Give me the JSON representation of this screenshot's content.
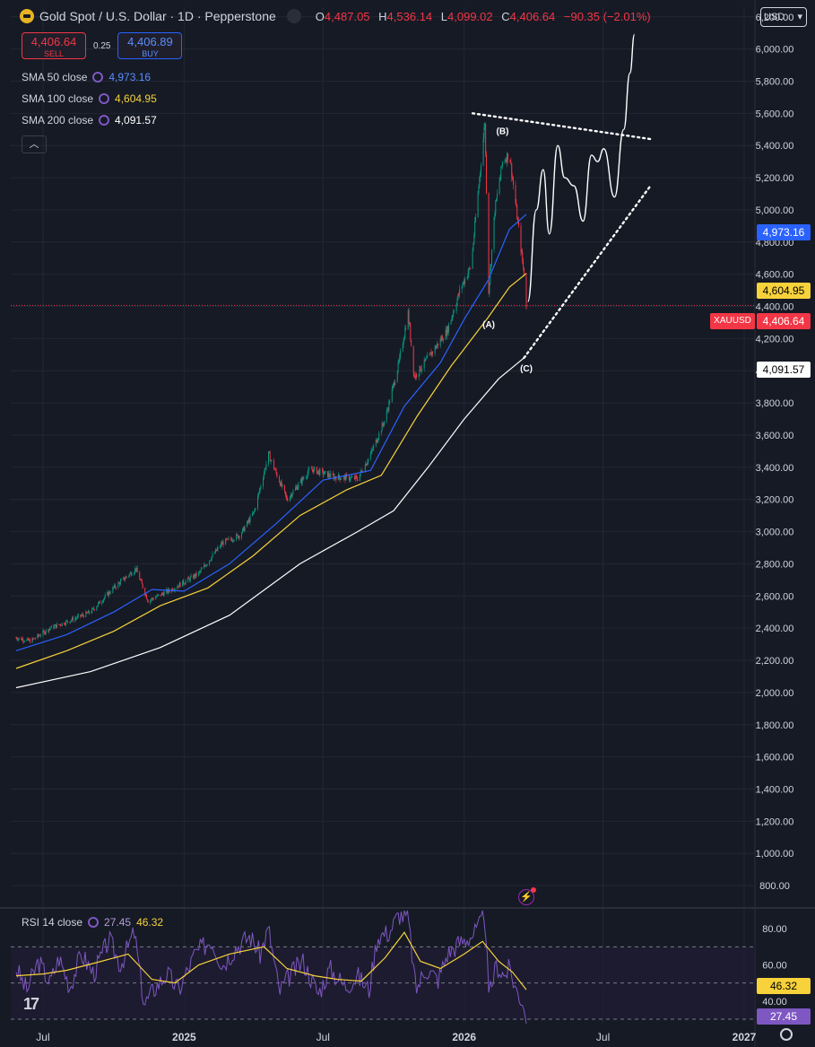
{
  "header": {
    "symbol_title": "Gold Spot / U.S. Dollar · 1D · Pepperstone",
    "ohlc": [
      {
        "k": "O",
        "v": "4,487.05"
      },
      {
        "k": "H",
        "v": "4,536.14"
      },
      {
        "k": "L",
        "v": "4,099.02"
      },
      {
        "k": "C",
        "v": "4,406.64"
      }
    ],
    "change": "−90.35 (−2.01%)",
    "icon": "broadcast-icon"
  },
  "trade": {
    "sell_price": "4,406.64",
    "sell_label": "SELL",
    "spread": "0.25",
    "buy_price": "4,406.89",
    "buy_label": "BUY"
  },
  "indicators": {
    "sma50": {
      "label": "SMA 50 close",
      "value": "4,973.16",
      "color": "#2962ff"
    },
    "sma100": {
      "label": "SMA 100 close",
      "value": "4,604.95",
      "color": "#f7d23a"
    },
    "sma200": {
      "label": "SMA 200 close",
      "value": "4,091.57",
      "color": "#ffffff"
    },
    "collapse_icon": "chevron-up-icon"
  },
  "currency": "USD",
  "price_badges": {
    "sma50": "4,973.16",
    "sma100": "4,604.95",
    "symbol": "XAUUSD",
    "last": "4,406.64",
    "sma200": "4,091.57"
  },
  "rsi": {
    "label": "RSI 14 close",
    "rsi_value": "27.45",
    "ma_value": "46.32",
    "badge_ma": "46.32",
    "badge_rsi": "27.45"
  },
  "colors": {
    "background": "#161a25",
    "up": "#089981",
    "down": "#f23645",
    "sma50": "#2962ff",
    "sma100": "#f7d23a",
    "sma200": "#ffffff",
    "rsi": "#7e57c2"
  },
  "chart_data": [
    {
      "type": "candlestick",
      "title": "Gold Spot / U.S. Dollar · 1D · Pepperstone",
      "y_ticks": [
        "800.00",
        "1,000.00",
        "1,200.00",
        "1,400.00",
        "1,600.00",
        "1,800.00",
        "2,000.00",
        "2,200.00",
        "2,400.00",
        "2,600.00",
        "2,800.00",
        "3,000.00",
        "3,200.00",
        "3,400.00",
        "3,600.00",
        "3,800.00",
        "4,000.00",
        "4,200.00",
        "4,400.00",
        "4,600.00",
        "4,800.00",
        "5,000.00",
        "5,200.00",
        "5,400.00",
        "5,600.00",
        "5,800.00",
        "6,000.00",
        "6,200.00"
      ],
      "x_ticks": [
        "Jul",
        "2025",
        "Jul",
        "2026",
        "Jul",
        "2027"
      ],
      "ylim": [
        700,
        6260
      ],
      "price_path": [
        [
          "2024-05-27",
          2340
        ],
        [
          "2024-06-15",
          2320
        ],
        [
          "2024-07-10",
          2400
        ],
        [
          "2024-08-01",
          2440
        ],
        [
          "2024-09-01",
          2500
        ],
        [
          "2024-10-01",
          2650
        ],
        [
          "2024-10-30",
          2770
        ],
        [
          "2024-11-15",
          2570
        ],
        [
          "2024-12-15",
          2640
        ],
        [
          "2025-01-20",
          2740
        ],
        [
          "2025-02-20",
          2930
        ],
        [
          "2025-03-15",
          2980
        ],
        [
          "2025-04-02",
          3120
        ],
        [
          "2025-04-21",
          3480
        ],
        [
          "2025-05-15",
          3200
        ],
        [
          "2025-06-15",
          3390
        ],
        [
          "2025-07-15",
          3340
        ],
        [
          "2025-08-15",
          3330
        ],
        [
          "2025-09-01",
          3480
        ],
        [
          "2025-09-20",
          3700
        ],
        [
          "2025-10-08",
          4050
        ],
        [
          "2025-10-20",
          4360
        ],
        [
          "2025-10-28",
          3960
        ],
        [
          "2025-11-15",
          4080
        ],
        [
          "2025-12-10",
          4250
        ],
        [
          "2025-12-28",
          4520
        ],
        [
          "2026-01-10",
          4650
        ],
        [
          "2026-01-28",
          5550
        ],
        [
          "2026-02-02",
          4500
        ],
        [
          "2026-02-10",
          5000
        ],
        [
          "2026-02-20",
          5300
        ],
        [
          "2026-03-01",
          5350
        ],
        [
          "2026-03-10",
          5000
        ],
        [
          "2026-03-20",
          4600
        ],
        [
          "2026-03-23",
          4406.64
        ]
      ],
      "sma50": [
        [
          "2024-05-27",
          2260
        ],
        [
          "2024-08-01",
          2360
        ],
        [
          "2024-10-01",
          2500
        ],
        [
          "2024-11-20",
          2640
        ],
        [
          "2025-01-01",
          2630
        ],
        [
          "2025-03-01",
          2800
        ],
        [
          "2025-05-01",
          3050
        ],
        [
          "2025-07-01",
          3320
        ],
        [
          "2025-09-01",
          3380
        ],
        [
          "2025-10-15",
          3780
        ],
        [
          "2025-12-01",
          4050
        ],
        [
          "2026-01-01",
          4320
        ],
        [
          "2026-02-01",
          4560
        ],
        [
          "2026-03-01",
          4880
        ],
        [
          "2026-03-23",
          4973.16
        ]
      ],
      "sma100": [
        [
          "2024-05-27",
          2150
        ],
        [
          "2024-08-01",
          2260
        ],
        [
          "2024-10-01",
          2380
        ],
        [
          "2024-12-01",
          2540
        ],
        [
          "2025-02-01",
          2650
        ],
        [
          "2025-04-01",
          2850
        ],
        [
          "2025-06-01",
          3100
        ],
        [
          "2025-08-01",
          3260
        ],
        [
          "2025-09-15",
          3350
        ],
        [
          "2025-11-01",
          3720
        ],
        [
          "2025-12-15",
          4030
        ],
        [
          "2026-02-01",
          4330
        ],
        [
          "2026-03-01",
          4520
        ],
        [
          "2026-03-23",
          4604.95
        ]
      ],
      "sma200": [
        [
          "2024-05-27",
          2030
        ],
        [
          "2024-09-01",
          2130
        ],
        [
          "2024-12-01",
          2280
        ],
        [
          "2025-03-01",
          2480
        ],
        [
          "2025-06-01",
          2800
        ],
        [
          "2025-08-15",
          3000
        ],
        [
          "2025-10-01",
          3130
        ],
        [
          "2025-11-15",
          3400
        ],
        [
          "2026-01-01",
          3700
        ],
        [
          "2026-02-15",
          3950
        ],
        [
          "2026-03-23",
          4091.57
        ]
      ],
      "drawing_projection": [
        [
          "2026-03-25",
          4430
        ],
        [
          "2026-04-05",
          5000
        ],
        [
          "2026-04-14",
          5250
        ],
        [
          "2026-04-22",
          4850
        ],
        [
          "2026-05-03",
          5400
        ],
        [
          "2026-05-12",
          5200
        ],
        [
          "2026-05-24",
          5150
        ],
        [
          "2026-06-05",
          4930
        ],
        [
          "2026-06-16",
          5340
        ],
        [
          "2026-06-24",
          5300
        ],
        [
          "2026-07-02",
          5380
        ],
        [
          "2026-07-16",
          5080
        ],
        [
          "2026-07-28",
          5500
        ],
        [
          "2026-08-05",
          5850
        ],
        [
          "2026-08-11",
          6090
        ]
      ],
      "trendline_upper": [
        [
          "2026-01-12",
          5600
        ],
        [
          "2026-09-01",
          5440
        ]
      ],
      "trendline_lower": [
        [
          "2026-03-20",
          4080
        ],
        [
          "2026-09-01",
          5150
        ]
      ],
      "wave_labels": [
        {
          "text": "(A)",
          "date": "2026-02-02",
          "price": 4270
        },
        {
          "text": "(B)",
          "date": "2026-02-20",
          "price": 5470
        },
        {
          "text": "(C)",
          "date": "2026-03-23",
          "price": 3995
        }
      ],
      "last_price": 4406.64,
      "last_price_line": "dotted-red"
    },
    {
      "type": "line",
      "title": "RSI 14 close",
      "y_ticks": [
        "40.00",
        "60.00",
        "80.00"
      ],
      "levels": [
        70,
        50,
        30
      ],
      "ylim": [
        28,
        90
      ],
      "rsi": [
        [
          "2024-05-27",
          58
        ],
        [
          "2024-06-10",
          46
        ],
        [
          "2024-06-25",
          62
        ],
        [
          "2024-07-10",
          50
        ],
        [
          "2024-07-22",
          64
        ],
        [
          "2024-08-05",
          48
        ],
        [
          "2024-08-20",
          66
        ],
        [
          "2024-09-05",
          55
        ],
        [
          "2024-09-25",
          74
        ],
        [
          "2024-10-10",
          60
        ],
        [
          "2024-10-28",
          78
        ],
        [
          "2024-11-10",
          38
        ],
        [
          "2024-11-25",
          48
        ],
        [
          "2024-12-10",
          55
        ],
        [
          "2024-12-25",
          46
        ],
        [
          "2025-01-15",
          66
        ],
        [
          "2025-02-05",
          74
        ],
        [
          "2025-02-20",
          60
        ],
        [
          "2025-03-10",
          70
        ],
        [
          "2025-03-28",
          76
        ],
        [
          "2025-04-10",
          66
        ],
        [
          "2025-04-21",
          80
        ],
        [
          "2025-05-05",
          45
        ],
        [
          "2025-05-20",
          55
        ],
        [
          "2025-06-05",
          62
        ],
        [
          "2025-06-25",
          44
        ],
        [
          "2025-07-10",
          58
        ],
        [
          "2025-07-30",
          48
        ],
        [
          "2025-08-15",
          54
        ],
        [
          "2025-08-30",
          46
        ],
        [
          "2025-09-10",
          76
        ],
        [
          "2025-09-25",
          78
        ],
        [
          "2025-10-08",
          88
        ],
        [
          "2025-10-20",
          86
        ],
        [
          "2025-10-30",
          46
        ],
        [
          "2025-11-12",
          58
        ],
        [
          "2025-11-28",
          52
        ],
        [
          "2025-12-10",
          66
        ],
        [
          "2025-12-25",
          72
        ],
        [
          "2026-01-10",
          76
        ],
        [
          "2026-01-20",
          80
        ],
        [
          "2026-01-28",
          90
        ],
        [
          "2026-02-02",
          42
        ],
        [
          "2026-02-12",
          60
        ],
        [
          "2026-02-22",
          54
        ],
        [
          "2026-03-01",
          58
        ],
        [
          "2026-03-10",
          46
        ],
        [
          "2026-03-18",
          40
        ],
        [
          "2026-03-23",
          27.45
        ]
      ],
      "rsi_ma": [
        [
          "2024-05-27",
          54
        ],
        [
          "2024-07-01",
          55
        ],
        [
          "2024-08-01",
          57
        ],
        [
          "2024-09-15",
          62
        ],
        [
          "2024-10-20",
          66
        ],
        [
          "2024-11-20",
          52
        ],
        [
          "2024-12-20",
          50
        ],
        [
          "2025-01-20",
          60
        ],
        [
          "2025-03-01",
          66
        ],
        [
          "2025-04-15",
          70
        ],
        [
          "2025-05-15",
          58
        ],
        [
          "2025-06-20",
          54
        ],
        [
          "2025-07-20",
          52
        ],
        [
          "2025-08-20",
          51
        ],
        [
          "2025-09-20",
          64
        ],
        [
          "2025-10-15",
          78
        ],
        [
          "2025-11-05",
          62
        ],
        [
          "2025-12-01",
          58
        ],
        [
          "2026-01-01",
          66
        ],
        [
          "2026-01-25",
          73
        ],
        [
          "2026-02-15",
          62
        ],
        [
          "2026-03-05",
          56
        ],
        [
          "2026-03-23",
          46.32
        ]
      ]
    }
  ]
}
